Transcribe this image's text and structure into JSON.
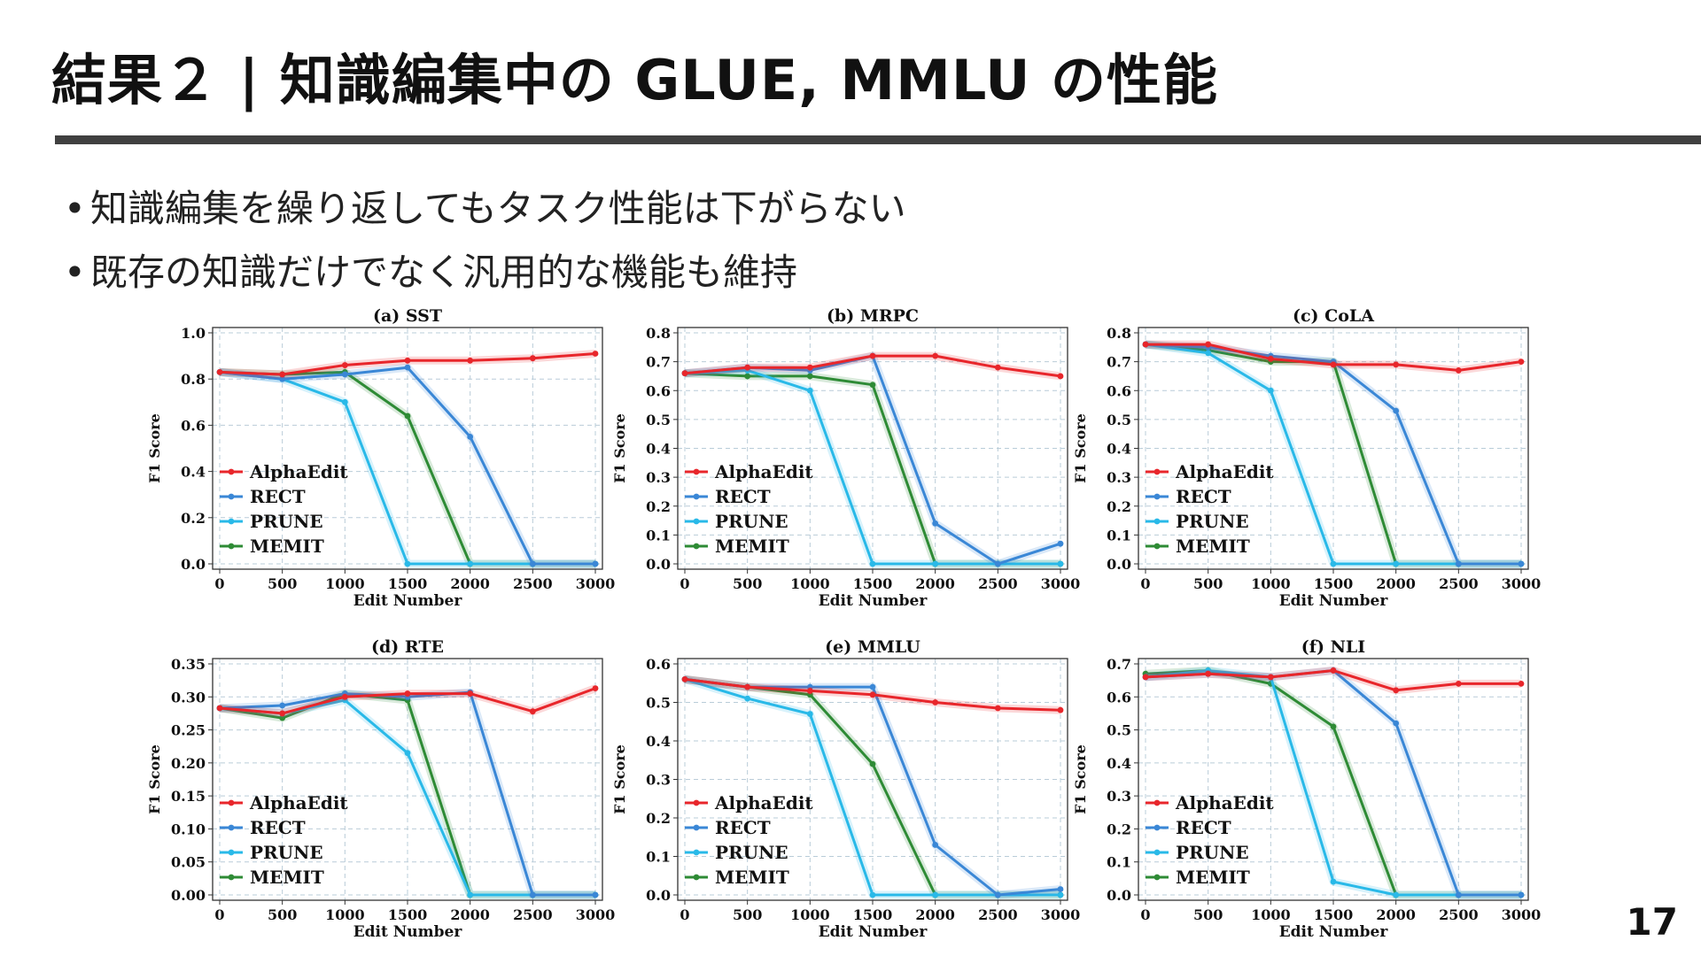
{
  "title": "結果２ | 知識編集中の GLUE, MMLU の性能",
  "bullets": [
    "知識編集を繰り返してもタスク性能は下がらない",
    "既存の知識だけでなく汎用的な機能も維持"
  ],
  "page_number": "17",
  "colors": {
    "AlphaEdit": "#e8262b",
    "RECT": "#3a87d6",
    "PRUNE": "#29b9e8",
    "MEMIT": "#2e8b35"
  },
  "chart_data": [
    {
      "type": "line",
      "title": "(a) SST",
      "xlabel": "Edit Number",
      "ylabel": "F1 Score",
      "x": [
        0,
        500,
        1000,
        1500,
        2000,
        2500,
        3000
      ],
      "xticks": [
        "0",
        "500",
        "1000",
        "1500",
        "2000",
        "2500",
        "3000"
      ],
      "ylim": [
        0,
        1.0
      ],
      "yticks": [
        "0.0",
        "0.2",
        "0.4",
        "0.6",
        "0.8",
        "1.0"
      ],
      "grid": true,
      "legend": "lower-left",
      "series": [
        {
          "name": "AlphaEdit",
          "values": [
            0.83,
            0.82,
            0.86,
            0.88,
            0.88,
            0.89,
            0.91
          ]
        },
        {
          "name": "RECT",
          "values": [
            0.83,
            0.8,
            0.82,
            0.85,
            0.55,
            0.0,
            0.0
          ]
        },
        {
          "name": "PRUNE",
          "values": [
            0.83,
            0.8,
            0.7,
            0.0,
            0.0,
            0.0,
            0.0
          ]
        },
        {
          "name": "MEMIT",
          "values": [
            0.83,
            0.82,
            0.83,
            0.64,
            0.0,
            0.0,
            0.0
          ]
        }
      ]
    },
    {
      "type": "line",
      "title": "(b) MRPC",
      "xlabel": "Edit Number",
      "ylabel": "F1 Score",
      "x": [
        0,
        500,
        1000,
        1500,
        2000,
        2500,
        3000
      ],
      "xticks": [
        "0",
        "500",
        "1000",
        "1500",
        "2000",
        "2500",
        "3000"
      ],
      "ylim": [
        0,
        0.8
      ],
      "yticks": [
        "0.0",
        "0.1",
        "0.2",
        "0.3",
        "0.4",
        "0.5",
        "0.6",
        "0.7",
        "0.8"
      ],
      "grid": true,
      "legend": "lower-left",
      "series": [
        {
          "name": "AlphaEdit",
          "values": [
            0.66,
            0.68,
            0.68,
            0.72,
            0.72,
            0.68,
            0.65
          ]
        },
        {
          "name": "RECT",
          "values": [
            0.66,
            0.68,
            0.67,
            0.72,
            0.14,
            0.0,
            0.07
          ]
        },
        {
          "name": "PRUNE",
          "values": [
            0.66,
            0.67,
            0.6,
            0.0,
            0.0,
            0.0,
            0.0
          ]
        },
        {
          "name": "MEMIT",
          "values": [
            0.66,
            0.65,
            0.65,
            0.62,
            0.0,
            0.0,
            0.0
          ]
        }
      ]
    },
    {
      "type": "line",
      "title": "(c) CoLA",
      "xlabel": "Edit Number",
      "ylabel": "F1 Score",
      "x": [
        0,
        500,
        1000,
        1500,
        2000,
        2500,
        3000
      ],
      "xticks": [
        "0",
        "500",
        "1000",
        "1500",
        "2000",
        "2500",
        "3000"
      ],
      "ylim": [
        0,
        0.8
      ],
      "yticks": [
        "0.0",
        "0.1",
        "0.2",
        "0.3",
        "0.4",
        "0.5",
        "0.6",
        "0.7",
        "0.8"
      ],
      "grid": true,
      "legend": "lower-left",
      "series": [
        {
          "name": "AlphaEdit",
          "values": [
            0.76,
            0.76,
            0.71,
            0.69,
            0.69,
            0.67,
            0.7
          ]
        },
        {
          "name": "RECT",
          "values": [
            0.76,
            0.75,
            0.72,
            0.7,
            0.53,
            0.0,
            0.0
          ]
        },
        {
          "name": "PRUNE",
          "values": [
            0.76,
            0.73,
            0.6,
            0.0,
            0.0,
            0.0,
            0.0
          ]
        },
        {
          "name": "MEMIT",
          "values": [
            0.76,
            0.74,
            0.7,
            0.7,
            0.0,
            0.0,
            0.0
          ]
        }
      ]
    },
    {
      "type": "line",
      "title": "(d) RTE",
      "xlabel": "Edit Number",
      "ylabel": "F1 Score",
      "x": [
        0,
        500,
        1000,
        1500,
        2000,
        2500,
        3000
      ],
      "xticks": [
        "0",
        "500",
        "1000",
        "1500",
        "2000",
        "2500",
        "3000"
      ],
      "ylim": [
        0,
        0.35
      ],
      "yticks": [
        "0.00",
        "0.05",
        "0.10",
        "0.15",
        "0.20",
        "0.25",
        "0.30",
        "0.35"
      ],
      "grid": true,
      "legend": "lower-left",
      "series": [
        {
          "name": "AlphaEdit",
          "values": [
            0.283,
            0.275,
            0.3,
            0.305,
            0.305,
            0.278,
            0.313
          ]
        },
        {
          "name": "RECT",
          "values": [
            0.283,
            0.287,
            0.305,
            0.3,
            0.307,
            0.0,
            0.0
          ]
        },
        {
          "name": "PRUNE",
          "values": [
            0.283,
            0.275,
            0.295,
            0.215,
            0.0,
            0.0,
            0.0
          ]
        },
        {
          "name": "MEMIT",
          "values": [
            0.283,
            0.268,
            0.305,
            0.295,
            0.0,
            0.0,
            0.0
          ]
        }
      ]
    },
    {
      "type": "line",
      "title": "(e) MMLU",
      "xlabel": "Edit Number",
      "ylabel": "F1 Score",
      "x": [
        0,
        500,
        1000,
        1500,
        2000,
        2500,
        3000
      ],
      "xticks": [
        "0",
        "500",
        "1000",
        "1500",
        "2000",
        "2500",
        "3000"
      ],
      "ylim": [
        0,
        0.6
      ],
      "yticks": [
        "0.0",
        "0.1",
        "0.2",
        "0.3",
        "0.4",
        "0.5",
        "0.6"
      ],
      "grid": true,
      "legend": "lower-left",
      "series": [
        {
          "name": "AlphaEdit",
          "values": [
            0.56,
            0.54,
            0.53,
            0.52,
            0.5,
            0.485,
            0.48
          ]
        },
        {
          "name": "RECT",
          "values": [
            0.56,
            0.54,
            0.54,
            0.54,
            0.13,
            0.0,
            0.015
          ]
        },
        {
          "name": "PRUNE",
          "values": [
            0.56,
            0.51,
            0.47,
            0.0,
            0.0,
            0.0,
            0.0
          ]
        },
        {
          "name": "MEMIT",
          "values": [
            0.56,
            0.54,
            0.52,
            0.34,
            0.0,
            0.0,
            0.0
          ]
        }
      ]
    },
    {
      "type": "line",
      "title": "(f) NLI",
      "xlabel": "Edit Number",
      "ylabel": "F1 Score",
      "x": [
        0,
        500,
        1000,
        1500,
        2000,
        2500,
        3000
      ],
      "xticks": [
        "0",
        "500",
        "1000",
        "1500",
        "2000",
        "2500",
        "3000"
      ],
      "ylim": [
        0,
        0.7
      ],
      "yticks": [
        "0.0",
        "0.1",
        "0.2",
        "0.3",
        "0.4",
        "0.5",
        "0.6",
        "0.7"
      ],
      "grid": true,
      "legend": "lower-left",
      "series": [
        {
          "name": "AlphaEdit",
          "values": [
            0.66,
            0.67,
            0.66,
            0.68,
            0.62,
            0.64,
            0.64
          ]
        },
        {
          "name": "RECT",
          "values": [
            0.66,
            0.67,
            0.66,
            0.68,
            0.52,
            0.0,
            0.0
          ]
        },
        {
          "name": "PRUNE",
          "values": [
            0.66,
            0.68,
            0.66,
            0.04,
            0.0,
            0.0,
            0.0
          ]
        },
        {
          "name": "MEMIT",
          "values": [
            0.67,
            0.68,
            0.64,
            0.51,
            0.0,
            0.0,
            0.0
          ]
        }
      ]
    }
  ]
}
